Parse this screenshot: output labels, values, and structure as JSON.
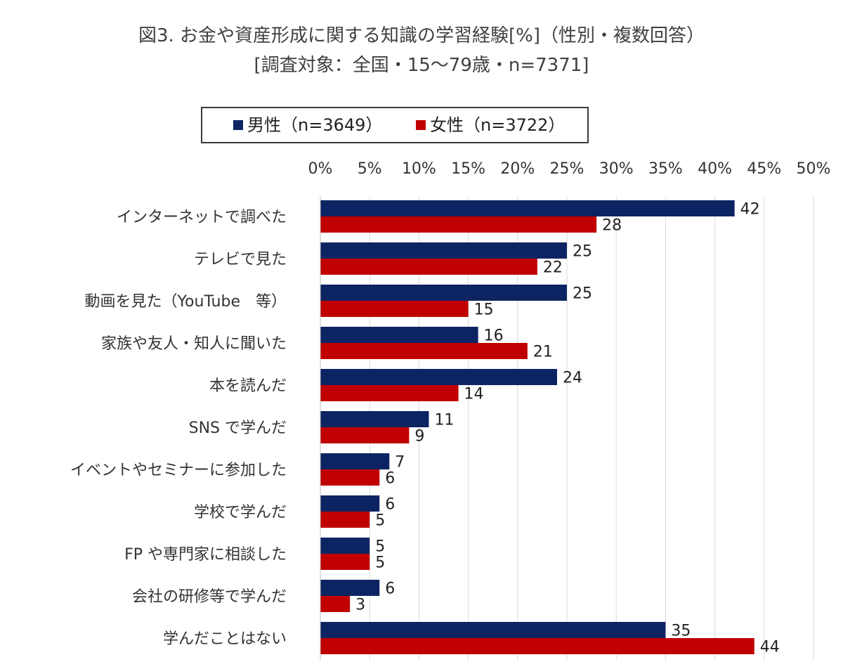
{
  "title_line1": "図3. お金や資産形成に関する知識の学習経験[%]（性別・複数回答）",
  "title_line2": "[調査対象：全国・15～79歳・n=7371]",
  "colors": {
    "male": "#0d2463",
    "female": "#c00000",
    "grid": "#d9d9d9"
  },
  "chart_data": {
    "type": "bar",
    "orientation": "horizontal",
    "categories": [
      "インターネットで調べた",
      "テレビで見た",
      "動画を見た（YouTube　等）",
      "家族や友人・知人に聞いた",
      "本を読んだ",
      "SNS で学んだ",
      "イベントやセミナーに参加した",
      "学校で学んだ",
      "FP や専門家に相談した",
      "会社の研修等で学んだ",
      "学んだことはない"
    ],
    "series": [
      {
        "name": "男性（n=3649）",
        "values": [
          42,
          25,
          25,
          16,
          24,
          11,
          7,
          6,
          5,
          6,
          35
        ]
      },
      {
        "name": "女性（n=3722）",
        "values": [
          28,
          22,
          15,
          21,
          14,
          9,
          6,
          5,
          5,
          3,
          44
        ]
      }
    ],
    "xlim": [
      0,
      50
    ],
    "xticks": [
      0,
      5,
      10,
      15,
      20,
      25,
      30,
      35,
      40,
      45,
      50
    ],
    "tick_format": "%",
    "grid": true,
    "legend_position": "top"
  }
}
